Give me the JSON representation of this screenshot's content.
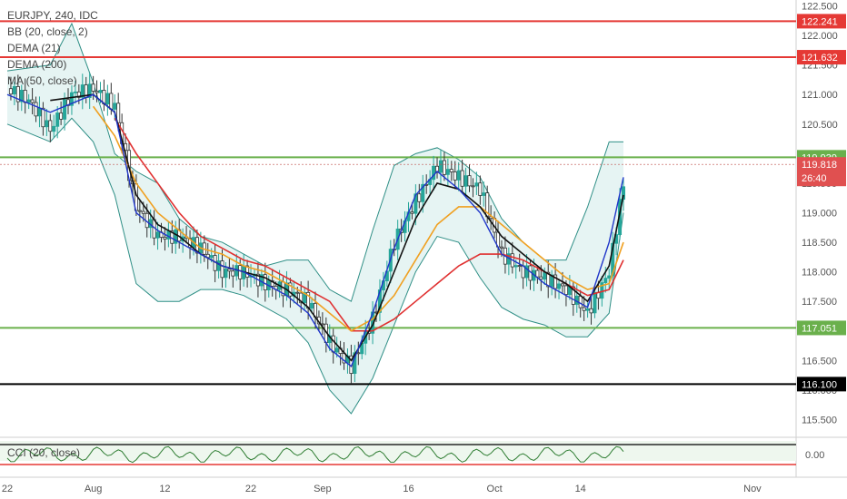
{
  "legend": {
    "symbol": "EURJPY, 240, IDC",
    "bb": "BB (20, close, 2)",
    "dema21": "DEMA (21)",
    "dema200": "DEMA (200)",
    "ma50": "MA (50, close)"
  },
  "cci": {
    "label": "CCI (20, close)",
    "tick": "0.00"
  },
  "colors": {
    "up": "#26a69a",
    "down": "#333333",
    "bb": "#2f8f86",
    "bbFill": "#e6f4f3",
    "dema21": "#1f35c9",
    "dema200": "#111111",
    "ma50": "#f0a020",
    "ma200": "#e03030",
    "red": "#e53935",
    "green": "#6ab04c",
    "black": "#000000"
  },
  "chart_data": {
    "type": "line",
    "title": "EURJPY, 240, IDC",
    "x_ticks": [
      "22",
      "Aug",
      "12",
      "22",
      "Sep",
      "16",
      "Oct",
      "14",
      "Nov"
    ],
    "y_ticks": [
      "122.500",
      "122.000",
      "121.500",
      "121.000",
      "120.500",
      "120.000",
      "119.500",
      "119.000",
      "118.500",
      "118.000",
      "117.500",
      "117.000",
      "116.500",
      "116.000",
      "115.500"
    ],
    "ylim": [
      115.2,
      122.6
    ],
    "levels": [
      {
        "value": 122.241,
        "label": "122.241",
        "color": "red"
      },
      {
        "value": 121.632,
        "label": "121.632",
        "color": "red"
      },
      {
        "value": 119.939,
        "label": "119.939",
        "color": "green"
      },
      {
        "value": 117.051,
        "label": "117.051",
        "color": "green"
      },
      {
        "value": 116.1,
        "label": "116.100",
        "color": "black"
      }
    ],
    "price_badge": {
      "value": 119.818,
      "label": "119.818",
      "countdown": "26:40"
    },
    "series": [
      {
        "name": "price",
        "x": [
          0,
          3,
          6,
          9,
          12,
          15,
          18,
          21,
          24,
          27,
          30,
          33,
          36,
          39,
          42,
          45,
          48,
          51,
          54,
          57,
          60,
          63,
          66,
          69,
          72,
          75,
          78,
          81,
          84,
          86
        ],
        "values": [
          121.1,
          120.9,
          120.4,
          121.0,
          121.1,
          120.8,
          119.1,
          118.6,
          118.6,
          118.4,
          118.0,
          118.0,
          117.8,
          117.7,
          117.5,
          116.8,
          116.4,
          117.2,
          118.5,
          119.2,
          119.8,
          119.6,
          119.4,
          118.3,
          118.0,
          117.9,
          117.7,
          117.3,
          118.0,
          119.5
        ]
      },
      {
        "name": "DEMA (21)",
        "x": [
          0,
          6,
          12,
          15,
          18,
          21,
          24,
          27,
          30,
          33,
          36,
          39,
          42,
          45,
          48,
          51,
          54,
          57,
          60,
          63,
          66,
          69,
          72,
          75,
          78,
          81,
          84,
          86
        ],
        "values": [
          121.0,
          120.7,
          121.0,
          120.7,
          119.0,
          118.7,
          118.5,
          118.3,
          118.1,
          118.0,
          117.8,
          117.6,
          117.3,
          116.7,
          116.4,
          117.3,
          118.4,
          119.3,
          119.7,
          119.4,
          119.0,
          118.3,
          118.1,
          117.8,
          117.6,
          117.4,
          118.5,
          119.6
        ]
      },
      {
        "name": "DEMA (200)",
        "x": [
          6,
          12,
          15,
          18,
          21,
          24,
          27,
          30,
          33,
          36,
          39,
          42,
          45,
          48,
          51,
          54,
          57,
          60,
          63,
          66,
          69,
          72,
          75,
          78,
          81,
          84,
          86
        ],
        "values": [
          120.9,
          121.0,
          120.7,
          119.3,
          118.8,
          118.6,
          118.3,
          118.1,
          118.0,
          117.9,
          117.7,
          117.4,
          116.9,
          116.5,
          117.1,
          118.0,
          118.9,
          119.5,
          119.4,
          119.1,
          118.6,
          118.3,
          118.0,
          117.8,
          117.5,
          118.1,
          119.3
        ]
      },
      {
        "name": "MA (50, close)",
        "x": [
          12,
          15,
          18,
          21,
          24,
          27,
          30,
          33,
          36,
          39,
          42,
          45,
          48,
          51,
          54,
          57,
          60,
          63,
          66,
          69,
          72,
          75,
          78,
          81,
          84,
          86
        ],
        "values": [
          120.8,
          120.3,
          119.5,
          119.0,
          118.7,
          118.4,
          118.3,
          118.1,
          118.0,
          117.8,
          117.6,
          117.3,
          117.0,
          117.2,
          117.6,
          118.2,
          118.8,
          119.1,
          119.1,
          118.8,
          118.5,
          118.2,
          117.9,
          117.7,
          117.8,
          118.5
        ]
      },
      {
        "name": "MA 200",
        "x": [
          15,
          18,
          21,
          24,
          27,
          30,
          33,
          36,
          39,
          42,
          45,
          48,
          51,
          54,
          57,
          60,
          63,
          66,
          69,
          72,
          75,
          78,
          81,
          84,
          86
        ],
        "values": [
          120.6,
          120.0,
          119.5,
          119.0,
          118.6,
          118.4,
          118.2,
          118.1,
          117.9,
          117.7,
          117.5,
          117.0,
          117.0,
          117.2,
          117.5,
          117.8,
          118.1,
          118.3,
          118.3,
          118.2,
          118.0,
          117.8,
          117.6,
          117.7,
          118.2
        ]
      },
      {
        "name": "BB upper",
        "x": [
          0,
          6,
          9,
          12,
          15,
          18,
          21,
          24,
          27,
          30,
          33,
          36,
          39,
          42,
          45,
          48,
          51,
          54,
          57,
          60,
          63,
          66,
          69,
          72,
          75,
          78,
          81,
          84,
          86
        ],
        "values": [
          121.4,
          121.5,
          122.2,
          121.2,
          120.0,
          119.7,
          119.5,
          118.9,
          118.6,
          118.5,
          118.3,
          118.1,
          118.2,
          118.2,
          117.7,
          117.5,
          118.7,
          119.8,
          120.0,
          120.1,
          119.9,
          119.6,
          118.9,
          118.5,
          118.2,
          118.2,
          119.1,
          120.2,
          120.2
        ]
      },
      {
        "name": "BB lower",
        "x": [
          0,
          6,
          9,
          12,
          15,
          18,
          21,
          24,
          27,
          30,
          33,
          36,
          39,
          42,
          45,
          48,
          51,
          54,
          57,
          60,
          63,
          66,
          69,
          72,
          75,
          78,
          81,
          84,
          86
        ],
        "values": [
          120.5,
          120.2,
          120.6,
          120.2,
          119.3,
          117.8,
          117.5,
          117.5,
          117.7,
          117.7,
          117.6,
          117.4,
          117.2,
          116.8,
          116.0,
          115.6,
          116.2,
          117.1,
          118.0,
          118.6,
          118.5,
          117.9,
          117.4,
          117.2,
          117.1,
          116.9,
          116.9,
          117.3,
          119.0
        ]
      }
    ]
  }
}
